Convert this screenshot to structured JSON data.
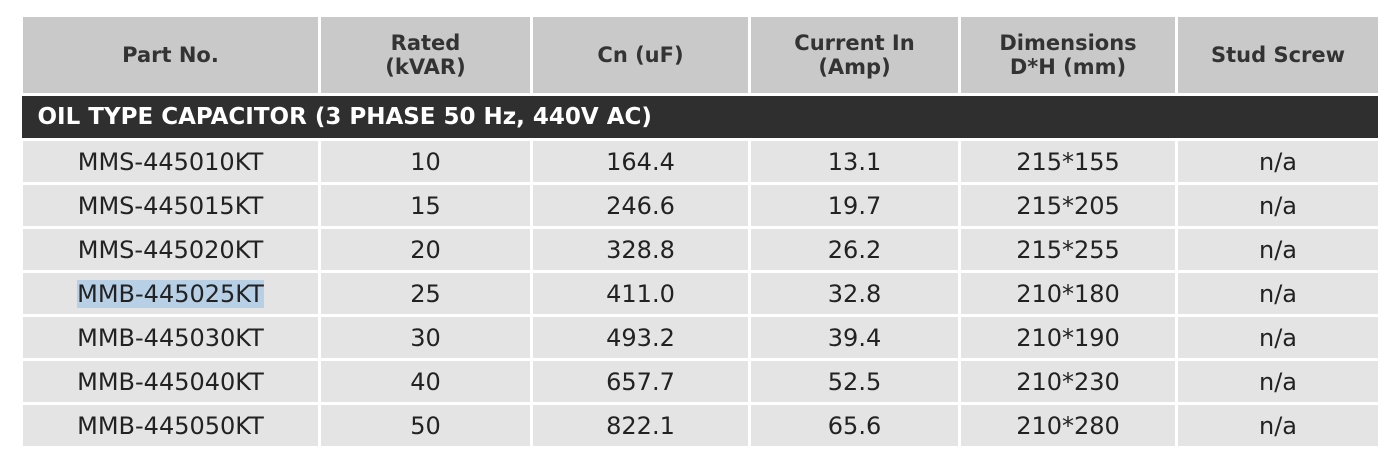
{
  "table": {
    "headers": [
      "Part No.",
      "Rated\n(kVAR)",
      "Cn (uF)",
      "Current In\n(Amp)",
      "Dimensions\nD*H (mm)",
      "Stud Screw"
    ],
    "section": "OIL TYPE CAPACITOR (3 PHASE 50 Hz, 440V AC)",
    "rows": [
      [
        "MMS-445010KT",
        "10",
        "164.4",
        "13.1",
        "215*155",
        "n/a"
      ],
      [
        "MMS-445015KT",
        "15",
        "246.6",
        "19.7",
        "215*205",
        "n/a"
      ],
      [
        "MMS-445020KT",
        "20",
        "328.8",
        "26.2",
        "215*255",
        "n/a"
      ],
      [
        "MMB-445025KT",
        "25",
        "411.0",
        "32.8",
        "210*180",
        "n/a"
      ],
      [
        "MMB-445030KT",
        "30",
        "493.2",
        "39.4",
        "210*190",
        "n/a"
      ],
      [
        "MMB-445040KT",
        "40",
        "657.7",
        "52.5",
        "210*230",
        "n/a"
      ],
      [
        "MMB-445050KT",
        "50",
        "822.1",
        "65.6",
        "210*280",
        "n/a"
      ]
    ]
  }
}
